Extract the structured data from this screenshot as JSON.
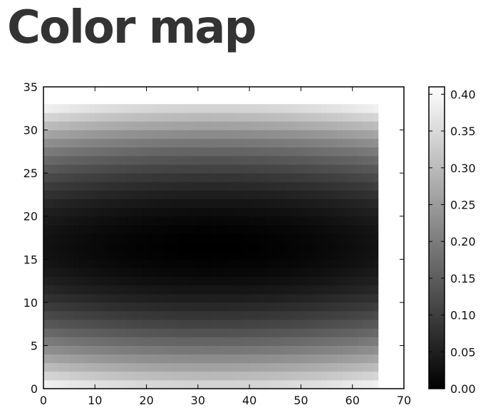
{
  "page": {
    "title": "Color map"
  },
  "chart_data": {
    "type": "heatmap",
    "title": "",
    "xlabel": "",
    "ylabel": "",
    "xlim": [
      0,
      70
    ],
    "ylim": [
      0,
      35
    ],
    "x_ticks": [
      0,
      10,
      20,
      30,
      40,
      50,
      60,
      70
    ],
    "y_ticks": [
      0,
      5,
      10,
      15,
      20,
      25,
      30,
      35
    ],
    "grid": {
      "nx": 65,
      "ny": 33
    },
    "extent": {
      "x": [
        0,
        65
      ],
      "y": [
        0,
        33
      ]
    },
    "center": {
      "x": 32.5,
      "y": 16.5
    },
    "value_range": [
      0.0,
      0.41
    ],
    "colormap": "gray",
    "colorbar": {
      "ticks": [
        0.0,
        0.05,
        0.1,
        0.15,
        0.2,
        0.25,
        0.3,
        0.35,
        0.4
      ],
      "tick_labels": [
        "0.00",
        "0.05",
        "0.10",
        "0.15",
        "0.20",
        "0.25",
        "0.30",
        "0.35",
        "0.40"
      ]
    }
  }
}
